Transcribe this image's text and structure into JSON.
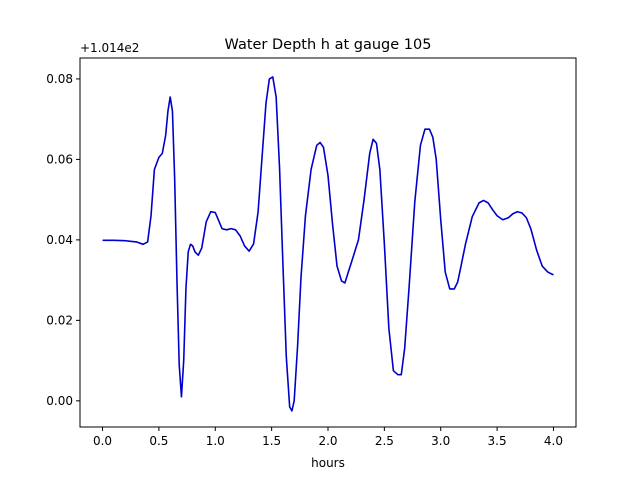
{
  "chart_data": {
    "type": "line",
    "title": "Water Depth h at gauge 105",
    "xlabel": "hours",
    "ylabel": "",
    "y_offset_label": "+1.014e2",
    "xlim": [
      -0.2,
      4.2
    ],
    "ylim": [
      -0.0065,
      0.0852
    ],
    "xticks": [
      0.0,
      0.5,
      1.0,
      1.5,
      2.0,
      2.5,
      3.0,
      3.5,
      4.0
    ],
    "xtick_labels": [
      "0.0",
      "0.5",
      "1.0",
      "1.5",
      "2.0",
      "2.5",
      "3.0",
      "3.5",
      "4.0"
    ],
    "yticks": [
      0.0,
      0.02,
      0.04,
      0.06,
      0.08
    ],
    "ytick_labels": [
      "0.00",
      "0.02",
      "0.04",
      "0.06",
      "0.08"
    ],
    "grid": false,
    "line_color": "#0000cc",
    "series": [
      {
        "name": "",
        "x": [
          0.0,
          0.1,
          0.2,
          0.3,
          0.36,
          0.4,
          0.43,
          0.46,
          0.5,
          0.53,
          0.56,
          0.58,
          0.6,
          0.62,
          0.64,
          0.66,
          0.68,
          0.7,
          0.72,
          0.74,
          0.76,
          0.78,
          0.8,
          0.82,
          0.85,
          0.88,
          0.92,
          0.96,
          1.0,
          1.03,
          1.06,
          1.1,
          1.14,
          1.18,
          1.22,
          1.26,
          1.3,
          1.34,
          1.38,
          1.42,
          1.45,
          1.48,
          1.51,
          1.54,
          1.57,
          1.6,
          1.63,
          1.66,
          1.68,
          1.7,
          1.73,
          1.76,
          1.8,
          1.85,
          1.9,
          1.93,
          1.96,
          2.0,
          2.04,
          2.08,
          2.12,
          2.15,
          2.18,
          2.22,
          2.27,
          2.32,
          2.37,
          2.4,
          2.43,
          2.46,
          2.5,
          2.54,
          2.58,
          2.62,
          2.65,
          2.68,
          2.72,
          2.77,
          2.82,
          2.86,
          2.9,
          2.93,
          2.96,
          3.0,
          3.04,
          3.08,
          3.12,
          3.15,
          3.18,
          3.22,
          3.28,
          3.34,
          3.38,
          3.42,
          3.46,
          3.5,
          3.55,
          3.6,
          3.64,
          3.68,
          3.72,
          3.76,
          3.8,
          3.85,
          3.9,
          3.95,
          4.0
        ],
        "y": [
          0.0399,
          0.0399,
          0.0398,
          0.0395,
          0.0389,
          0.0395,
          0.046,
          0.0575,
          0.0605,
          0.0615,
          0.066,
          0.072,
          0.0755,
          0.072,
          0.055,
          0.03,
          0.009,
          0.001,
          0.01,
          0.028,
          0.037,
          0.0389,
          0.0385,
          0.037,
          0.0362,
          0.038,
          0.0445,
          0.047,
          0.0468,
          0.0448,
          0.0428,
          0.0425,
          0.0428,
          0.0425,
          0.041,
          0.0385,
          0.0372,
          0.039,
          0.047,
          0.0625,
          0.074,
          0.08,
          0.0805,
          0.0755,
          0.058,
          0.034,
          0.011,
          -0.0015,
          -0.0025,
          0.0,
          0.0135,
          0.0305,
          0.046,
          0.0575,
          0.0635,
          0.0642,
          0.063,
          0.056,
          0.044,
          0.0335,
          0.0298,
          0.0293,
          0.032,
          0.0355,
          0.04,
          0.05,
          0.0615,
          0.065,
          0.064,
          0.0575,
          0.039,
          0.018,
          0.0075,
          0.0065,
          0.0065,
          0.013,
          0.0285,
          0.0495,
          0.0635,
          0.0675,
          0.0675,
          0.0655,
          0.06,
          0.045,
          0.032,
          0.0278,
          0.0278,
          0.0295,
          0.0335,
          0.039,
          0.0458,
          0.0492,
          0.0498,
          0.0492,
          0.0475,
          0.046,
          0.045,
          0.0455,
          0.0465,
          0.047,
          0.0467,
          0.0455,
          0.0427,
          0.0375,
          0.0335,
          0.032,
          0.0313
        ]
      }
    ]
  }
}
